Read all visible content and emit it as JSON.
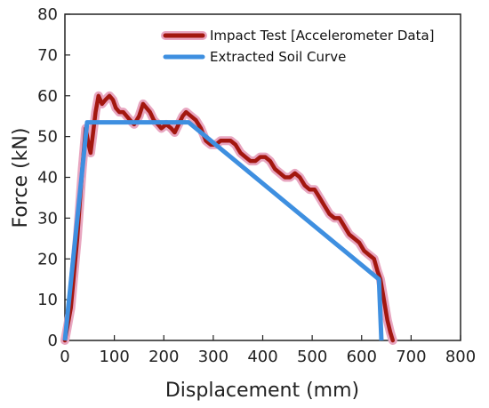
{
  "chart_data": {
    "type": "line",
    "xlabel": "Displacement (mm)",
    "ylabel": "Force (kN)",
    "xlim": [
      0,
      800
    ],
    "ylim": [
      0,
      80
    ],
    "xticks": [
      0,
      100,
      200,
      300,
      400,
      500,
      600,
      700,
      800
    ],
    "yticks": [
      0,
      10,
      20,
      30,
      40,
      50,
      60,
      70,
      80
    ],
    "grid": false,
    "legend_position": "top-right",
    "series": [
      {
        "name": "Impact Test [Accelerometer Data]",
        "color": "#a3170f",
        "halo_color": "#e8a6c0",
        "x": [
          0,
          12,
          25,
          35,
          42,
          48,
          52,
          56,
          62,
          68,
          75,
          82,
          90,
          97,
          103,
          110,
          118,
          125,
          132,
          140,
          150,
          158,
          165,
          172,
          180,
          188,
          195,
          205,
          215,
          222,
          230,
          238,
          245,
          255,
          265,
          275,
          285,
          295,
          305,
          315,
          325,
          335,
          345,
          355,
          365,
          375,
          385,
          395,
          405,
          415,
          425,
          435,
          445,
          455,
          465,
          475,
          485,
          495,
          505,
          515,
          525,
          535,
          545,
          555,
          565,
          575,
          585,
          595,
          605,
          615,
          625,
          632,
          638,
          645,
          652,
          658,
          663
        ],
        "y": [
          0,
          8,
          25,
          42,
          52,
          48,
          46,
          50,
          56,
          60,
          58,
          59,
          60,
          59,
          57,
          56,
          56,
          55,
          54,
          53,
          55,
          58,
          57,
          56,
          54,
          53,
          52,
          53,
          52,
          51,
          53,
          55,
          56,
          55,
          54,
          52,
          49,
          48,
          48,
          49,
          49,
          49,
          48,
          46,
          45,
          44,
          44,
          45,
          45,
          44,
          42,
          41,
          40,
          40,
          41,
          40,
          38,
          37,
          37,
          35,
          33,
          31,
          30,
          30,
          28,
          26,
          25,
          24,
          22,
          21,
          20,
          17,
          15,
          10,
          5,
          2,
          0
        ]
      },
      {
        "name": "Extracted Soil Curve",
        "color": "#3e8fe0",
        "x": [
          0,
          45,
          250,
          635,
          640
        ],
        "y": [
          0,
          53.5,
          53.5,
          15,
          0
        ]
      }
    ]
  }
}
